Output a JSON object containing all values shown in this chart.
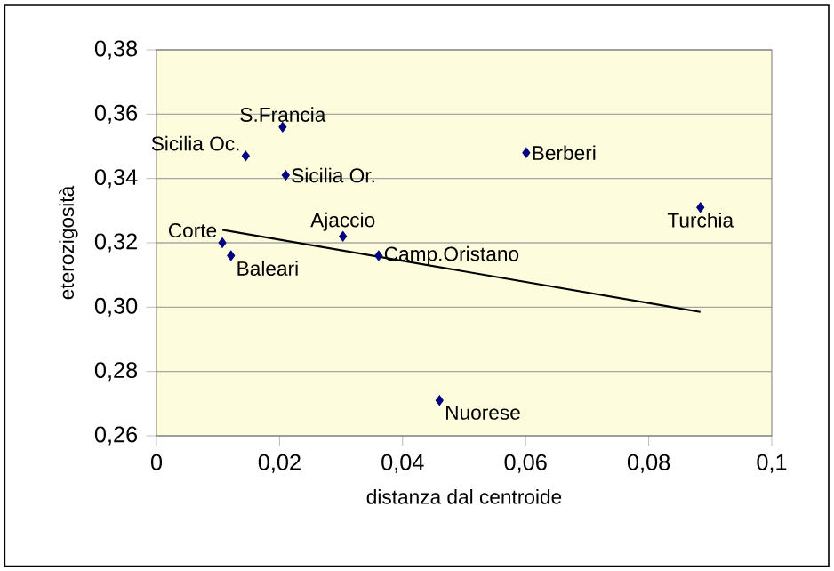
{
  "chart_data": {
    "type": "scatter",
    "xlabel": "distanza dal centroide",
    "ylabel": "eterozigosità",
    "xlim": [
      0,
      0.1
    ],
    "ylim": [
      0.26,
      0.38
    ],
    "xticks": [
      0,
      {
        "value": 0.02,
        "label": "0,02"
      },
      {
        "value": 0.04,
        "label": "0,04"
      },
      {
        "value": 0.06,
        "label": "0,06"
      },
      {
        "value": 0.08,
        "label": "0,08"
      },
      {
        "value": 0.1,
        "label": "0,1"
      }
    ],
    "yticks": [
      {
        "value": 0.26,
        "label": "0,26"
      },
      {
        "value": 0.28,
        "label": "0,28"
      },
      {
        "value": 0.3,
        "label": "0,30"
      },
      {
        "value": 0.32,
        "label": "0,32"
      },
      {
        "value": 0.34,
        "label": "0,34"
      },
      {
        "value": 0.36,
        "label": "0,36"
      },
      {
        "value": 0.38,
        "label": "0,38"
      }
    ],
    "grid": "y",
    "marker": "diamond",
    "series": [
      {
        "color": "#000080",
        "x": [
          0.0205,
          0.0145,
          0.021,
          0.0107,
          0.0121,
          0.0303,
          0.0361,
          0.046,
          0.0601,
          0.0884
        ],
        "values": [
          0.356,
          0.347,
          0.341,
          0.32,
          0.316,
          0.322,
          0.316,
          0.271,
          0.348,
          0.331
        ]
      },
      {
        "type": "line",
        "color": "#000000",
        "marker": "none",
        "line_style": "solid",
        "x": [
          0.0107,
          0.0884
        ],
        "values": [
          0.324,
          0.2985
        ]
      }
    ],
    "annotations": [
      {
        "text": "S.Francia",
        "x": 0.0205,
        "y": 0.356
      },
      {
        "text": "Sicilia Oc.",
        "x": 0.0145,
        "y": 0.347
      },
      {
        "text": "Sicilia Or.",
        "x": 0.021,
        "y": 0.341
      },
      {
        "text": "Corte",
        "x": 0.0107,
        "y": 0.32
      },
      {
        "text": "Baleari",
        "x": 0.0121,
        "y": 0.316
      },
      {
        "text": "Ajaccio",
        "x": 0.0303,
        "y": 0.322
      },
      {
        "text": "Camp.Oristano",
        "x": 0.0361,
        "y": 0.316
      },
      {
        "text": "Nuorese",
        "x": 0.046,
        "y": 0.271
      },
      {
        "text": "Berberi",
        "x": 0.0601,
        "y": 0.348
      },
      {
        "text": "Turchia",
        "x": 0.0884,
        "y": 0.331
      }
    ]
  }
}
